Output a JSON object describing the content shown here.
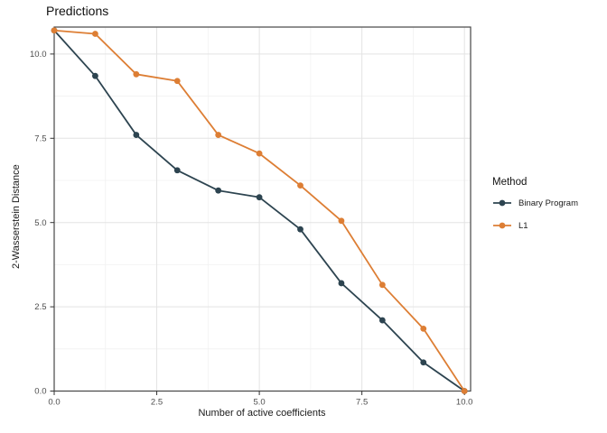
{
  "chart_data": {
    "type": "line",
    "title": "Predictions",
    "xlabel": "Number of active coefficients",
    "ylabel": "2-Wasserstein Distance",
    "x": [
      0,
      1,
      2,
      3,
      4,
      5,
      6,
      7,
      8,
      9,
      10
    ],
    "series": [
      {
        "name": "Binary Program",
        "color": "#2D4450",
        "values": [
          10.7,
          9.35,
          7.6,
          6.55,
          5.95,
          5.75,
          4.8,
          3.2,
          2.1,
          0.85,
          0.0
        ]
      },
      {
        "name": "L1",
        "color": "#DD7E34",
        "values": [
          10.7,
          10.6,
          9.4,
          9.2,
          7.6,
          7.05,
          6.1,
          5.05,
          3.15,
          1.85,
          0.0
        ]
      }
    ],
    "xlim": [
      0,
      10.15
    ],
    "ylim": [
      0,
      10.8
    ],
    "x_ticks": {
      "values": [
        0,
        2.5,
        5,
        7.5,
        10
      ],
      "labels": [
        "0.0",
        "2.5",
        "5.0",
        "7.5",
        "10.0"
      ]
    },
    "y_ticks": {
      "values": [
        0,
        2.5,
        5,
        7.5,
        10
      ],
      "labels": [
        "0.0",
        "2.5",
        "5.0",
        "7.5",
        "10.0"
      ]
    },
    "x_minor": [
      1.25,
      3.75,
      6.25,
      8.75
    ],
    "y_minor": [
      1.25,
      3.75,
      6.25,
      8.75
    ],
    "grid": true,
    "legend": {
      "title": "Method",
      "position": "right"
    }
  },
  "style": {
    "grid_major": "#e3e3e3",
    "grid_minor": "#f1f1f1",
    "border": "#474747",
    "tick": "#333333",
    "tick_label_color": "#4d4d4d"
  }
}
